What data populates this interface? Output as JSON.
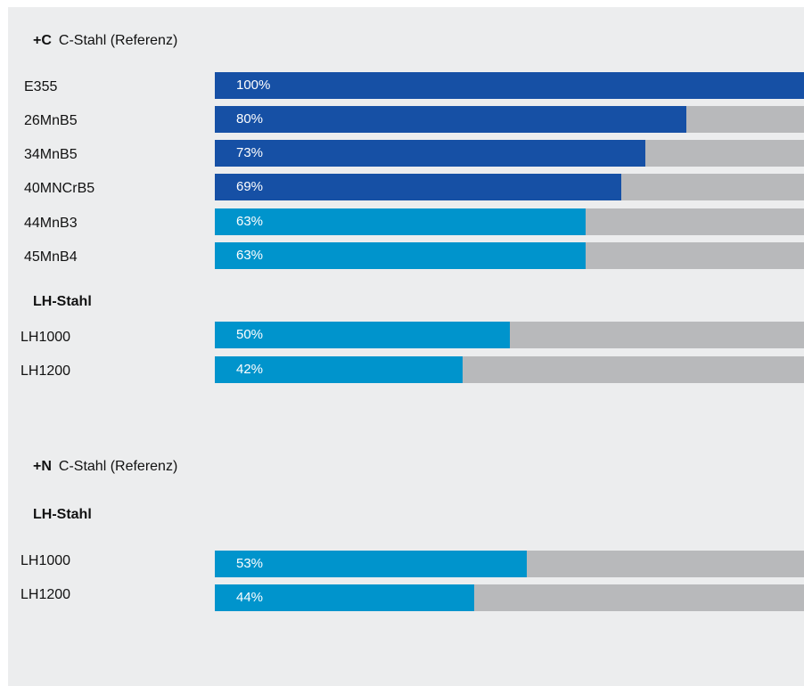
{
  "colors": {
    "panel_bg": "#ecedee",
    "track": "#b8b9bb",
    "dark_blue": "#1650a5",
    "light_blue": "#0094cc",
    "text": "#111111"
  },
  "chart_data": {
    "type": "bar",
    "orientation": "horizontal",
    "xlim": [
      0,
      100
    ],
    "unit": "%",
    "groups": [
      {
        "prefix": "+C",
        "title": "C-Stahl (Referenz)",
        "items": [
          {
            "name": "E355",
            "value": 100,
            "label": "100%",
            "color": "dark_blue"
          },
          {
            "name": "26MnB5",
            "value": 80,
            "label": "80%",
            "color": "dark_blue"
          },
          {
            "name": "34MnB5",
            "value": 73,
            "label": "73%",
            "color": "dark_blue"
          },
          {
            "name": "40MNCrB5",
            "value": 69,
            "label": "69%",
            "color": "dark_blue"
          },
          {
            "name": "44MnB3",
            "value": 63,
            "label": "63%",
            "color": "light_blue"
          },
          {
            "name": "45MnB4",
            "value": 63,
            "label": "63%",
            "color": "light_blue"
          }
        ],
        "subgroup": {
          "title": "LH-Stahl",
          "items": [
            {
              "name": "LH1000",
              "value": 50,
              "label": "50%",
              "color": "light_blue"
            },
            {
              "name": "LH1200",
              "value": 42,
              "label": "42%",
              "color": "light_blue"
            }
          ]
        }
      },
      {
        "prefix": "+N",
        "title": "C-Stahl (Referenz)",
        "items": [],
        "subgroup": {
          "title": "LH-Stahl",
          "items": [
            {
              "name": "LH1000",
              "value": 53,
              "label": "53%",
              "color": "light_blue"
            },
            {
              "name": "LH1200",
              "value": 44,
              "label": "44%",
              "color": "light_blue"
            }
          ]
        }
      }
    ]
  }
}
